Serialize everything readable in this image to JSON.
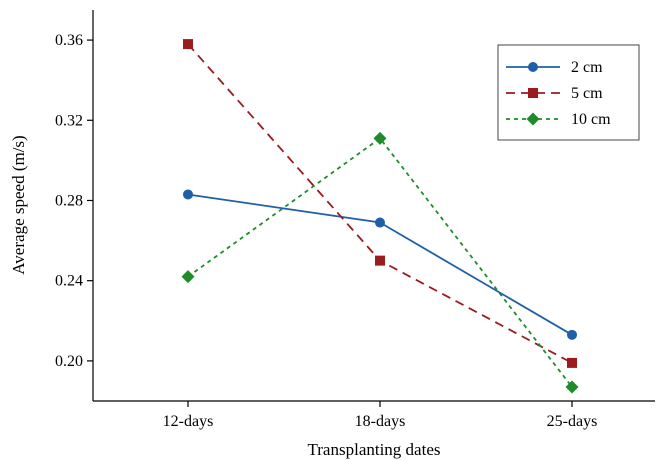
{
  "chart_data": {
    "type": "line",
    "title": "",
    "xlabel": "Transplanting dates",
    "ylabel": "Average speed (m/s)",
    "categories": [
      "12-days",
      "18-days",
      "25-days"
    ],
    "ylim": [
      0.18,
      0.375
    ],
    "yticks": [
      "0.20",
      "0.24",
      "0.28",
      "0.32",
      "0.36"
    ],
    "grid": false,
    "legend_position": "top-right",
    "series": [
      {
        "name": "2 cm",
        "values": [
          0.283,
          0.269,
          0.213
        ],
        "color": "#1f5fa8",
        "marker": "circle",
        "line_style": "solid"
      },
      {
        "name": "5 cm",
        "values": [
          0.358,
          0.25,
          0.199
        ],
        "color": "#9b1c1c",
        "marker": "square",
        "line_style": "dashed"
      },
      {
        "name": "10 cm",
        "values": [
          0.242,
          0.311,
          0.187
        ],
        "color": "#1e8c2a",
        "marker": "diamond",
        "line_style": "dotted"
      }
    ]
  }
}
